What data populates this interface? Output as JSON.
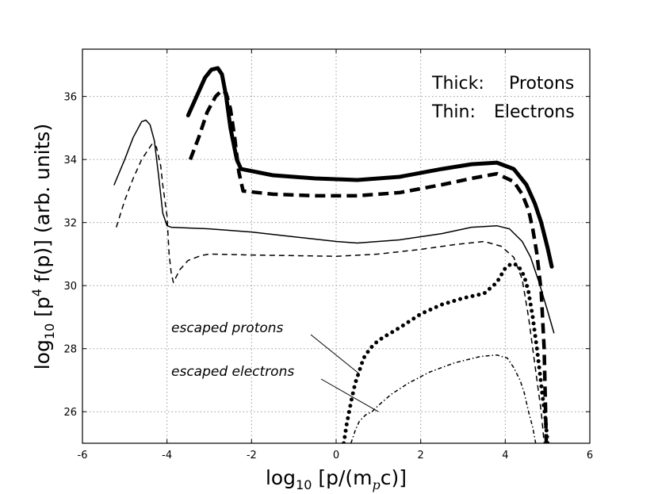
{
  "chart_data": {
    "type": "line",
    "xlabel_main": "log",
    "xlabel_sub": "10",
    "xlabel_rest_pre": " [p/(m",
    "xlabel_p": "p",
    "xlabel_rest_post": "c)]",
    "ylabel_main": "log",
    "ylabel_sub": "10",
    "ylabel_rest_pre": " [p",
    "ylabel_sup": "4",
    "ylabel_rest_post": " f(p)] (arb. units)",
    "xlim": [
      -6,
      6
    ],
    "ylim": [
      25,
      37.5
    ],
    "xticks": [
      "-6",
      "-4",
      "-2",
      "0",
      "2",
      "4",
      "6"
    ],
    "yticks": [
      "26",
      "28",
      "30",
      "32",
      "34",
      "36"
    ],
    "grid": true,
    "legend": {
      "line1_label": "Thick:",
      "line1_value": "Protons",
      "line2_label": "Thin:",
      "line2_value": "Electrons",
      "placement": "top-right"
    },
    "annotations": [
      {
        "text": "escaped protons",
        "target": [
          0.55,
          27.2
        ]
      },
      {
        "text": "escaped electrons",
        "target": [
          1.0,
          26.0
        ]
      }
    ],
    "series": [
      {
        "style": "thick-solid",
        "x": [
          -3.5,
          -3.3,
          -3.1,
          -2.95,
          -2.8,
          -2.7,
          -2.6,
          -2.5,
          -2.35,
          -2.25,
          -1.5,
          -0.5,
          0.5,
          1.5,
          2.5,
          3.2,
          3.8,
          4.2,
          4.5,
          4.7,
          4.85,
          5.0,
          5.1
        ],
        "y": [
          35.4,
          36.0,
          36.6,
          36.85,
          36.9,
          36.7,
          36.0,
          35.0,
          34.0,
          33.7,
          33.5,
          33.4,
          33.35,
          33.45,
          33.7,
          33.85,
          33.9,
          33.7,
          33.2,
          32.6,
          32.0,
          31.2,
          30.6
        ]
      },
      {
        "style": "thick-dashed",
        "x": [
          -3.45,
          -3.25,
          -3.05,
          -2.85,
          -2.7,
          -2.6,
          -2.5,
          -2.4,
          -2.3,
          -2.2,
          -1.5,
          -0.5,
          0.5,
          1.5,
          2.5,
          3.2,
          3.8,
          4.2,
          4.4,
          4.55,
          4.65,
          4.75,
          4.85,
          4.92,
          4.97
        ],
        "y": [
          34.0,
          34.7,
          35.5,
          36.0,
          36.2,
          36.1,
          35.6,
          34.7,
          33.6,
          33.0,
          32.9,
          32.85,
          32.85,
          32.95,
          33.2,
          33.4,
          33.55,
          33.3,
          32.9,
          32.4,
          31.8,
          31.0,
          29.8,
          28.0,
          25.0
        ]
      },
      {
        "style": "thin-solid",
        "x": [
          -5.25,
          -5.0,
          -4.8,
          -4.6,
          -4.5,
          -4.4,
          -4.3,
          -4.2,
          -4.1,
          -4.0,
          -3.9,
          -3.0,
          -2.0,
          -1.0,
          0.0,
          0.5,
          1.5,
          2.5,
          3.2,
          3.8,
          4.1,
          4.4,
          4.6,
          4.8,
          5.0,
          5.15
        ],
        "y": [
          33.2,
          34.0,
          34.7,
          35.2,
          35.25,
          35.1,
          34.6,
          33.5,
          32.3,
          31.9,
          31.85,
          31.8,
          31.7,
          31.55,
          31.4,
          31.35,
          31.45,
          31.65,
          31.85,
          31.9,
          31.8,
          31.4,
          30.9,
          30.1,
          29.2,
          28.5
        ]
      },
      {
        "style": "thin-dashed",
        "x": [
          -5.2,
          -5.0,
          -4.8,
          -4.6,
          -4.45,
          -4.35,
          -4.25,
          -4.15,
          -4.1,
          -4.0,
          -3.95,
          -3.9,
          -3.85,
          -3.7,
          -3.5,
          -3.2,
          -3.0,
          -2.0,
          -1.0,
          0.0,
          1.0,
          2.0,
          2.8,
          3.5,
          3.9,
          4.2,
          4.4,
          4.55,
          4.65,
          4.75,
          4.85,
          4.92
        ],
        "y": [
          31.85,
          32.7,
          33.4,
          34.0,
          34.3,
          34.5,
          34.4,
          33.8,
          33.2,
          32.2,
          31.0,
          30.4,
          30.1,
          30.5,
          30.8,
          30.95,
          31.0,
          30.97,
          30.95,
          30.93,
          31.0,
          31.15,
          31.3,
          31.4,
          31.25,
          30.9,
          30.2,
          29.0,
          28.0,
          27.0,
          26.0,
          25.0
        ]
      },
      {
        "style": "thick-dotted",
        "x": [
          0.18,
          0.25,
          0.35,
          0.45,
          0.55,
          0.65,
          0.8,
          0.95,
          1.1,
          1.3,
          1.6,
          2.0,
          2.5,
          3.0,
          3.5,
          3.8,
          4.0,
          4.15,
          4.3,
          4.45,
          4.55,
          4.65,
          4.75,
          4.82,
          4.88,
          4.95,
          5.0
        ],
        "y": [
          25.0,
          25.6,
          26.3,
          26.9,
          27.3,
          27.7,
          28.0,
          28.2,
          28.35,
          28.5,
          28.75,
          29.1,
          29.4,
          29.6,
          29.75,
          30.1,
          30.55,
          30.7,
          30.65,
          30.3,
          29.8,
          29.0,
          28.0,
          27.2,
          26.5,
          25.8,
          25.0
        ]
      },
      {
        "style": "thin-dashdot",
        "x": [
          0.35,
          0.45,
          0.55,
          0.7,
          0.85,
          1.0,
          1.3,
          1.7,
          2.2,
          2.8,
          3.4,
          3.8,
          4.05,
          4.2,
          4.35,
          4.45,
          4.55,
          4.65,
          4.72
        ],
        "y": [
          25.0,
          25.4,
          25.7,
          25.9,
          26.0,
          26.2,
          26.55,
          26.9,
          27.25,
          27.55,
          27.75,
          27.8,
          27.7,
          27.4,
          27.0,
          26.6,
          26.0,
          25.5,
          25.0
        ]
      }
    ]
  }
}
